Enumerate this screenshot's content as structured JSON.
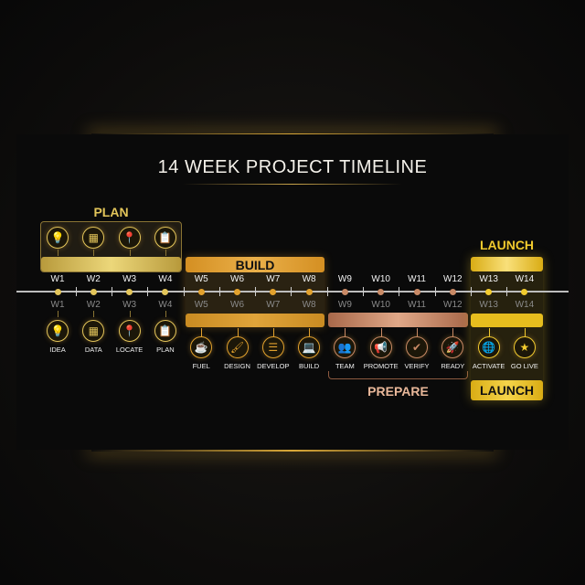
{
  "title": "14 WEEK PROJECT TIMELINE",
  "colors": {
    "plan": "#e3c55a",
    "build": "#e2a12d",
    "prepare": "#c98a66",
    "launch": "#f2cb2e"
  },
  "weeks": [
    "W1",
    "W2",
    "W3",
    "W4",
    "W5",
    "W6",
    "W7",
    "W8",
    "W9",
    "W10",
    "W11",
    "W12",
    "W13",
    "W14"
  ],
  "phases": {
    "plan": {
      "label": "PLAN"
    },
    "build": {
      "label": "BUILD"
    },
    "prepare": {
      "label": "PREPARE"
    },
    "launch": {
      "label": "LAUNCH",
      "bottom_label": "LAUNCH"
    }
  },
  "tasks": [
    {
      "label": "IDEA",
      "icon": "lightbulb-icon",
      "glyph": "💡",
      "phase": "plan"
    },
    {
      "label": "DATA",
      "icon": "calculator-icon",
      "glyph": "▦",
      "phase": "plan"
    },
    {
      "label": "LOCATE",
      "icon": "location-pin-icon",
      "glyph": "📍",
      "phase": "plan"
    },
    {
      "label": "PLAN",
      "icon": "clipboard-icon",
      "glyph": "📋",
      "phase": "plan"
    },
    {
      "label": "FUEL",
      "icon": "coffee-machine-icon",
      "glyph": "☕",
      "phase": "build"
    },
    {
      "label": "DESIGN",
      "icon": "paintbrush-icon",
      "glyph": "🖌",
      "phase": "build"
    },
    {
      "label": "DEVELOP",
      "icon": "list-icon",
      "glyph": "☰",
      "phase": "build"
    },
    {
      "label": "BUILD",
      "icon": "laptop-icon",
      "glyph": "💻",
      "phase": "build"
    },
    {
      "label": "TEAM",
      "icon": "team-icon",
      "glyph": "👥",
      "phase": "prepare"
    },
    {
      "label": "PROMOTE",
      "icon": "megaphone-icon",
      "glyph": "📢",
      "phase": "prepare"
    },
    {
      "label": "VERIFY",
      "icon": "check-circle-icon",
      "glyph": "✔",
      "phase": "prepare"
    },
    {
      "label": "READY",
      "icon": "rocket-icon",
      "glyph": "🚀",
      "phase": "prepare"
    },
    {
      "label": "ACTIVATE",
      "icon": "globe-icon",
      "glyph": "🌐",
      "phase": "launch"
    },
    {
      "label": "GO LIVE",
      "icon": "star-icon",
      "glyph": "★",
      "phase": "launch"
    }
  ]
}
